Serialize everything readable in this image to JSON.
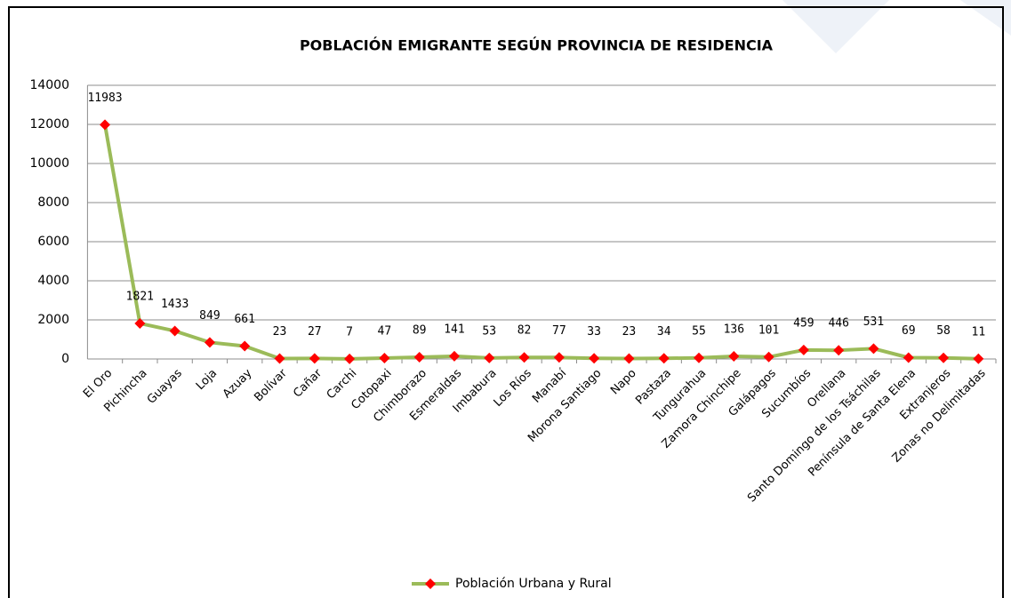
{
  "chart_data": {
    "type": "line",
    "title": "POBLACIÓN EMIGRANTE SEGÚN PROVINCIA DE RESIDENCIA",
    "categories": [
      "El Oro",
      "Pichincha",
      "Guayas",
      "Loja",
      "Azuay",
      "Bolívar",
      "Cañar",
      "Carchi",
      "Cotopaxi",
      "Chimborazo",
      "Esmeraldas",
      "Imbabura",
      "Los Ríos",
      "Manabí",
      "Morona Santiago",
      "Napo",
      "Pastaza",
      "Tungurahua",
      "Zamora Chinchipe",
      "Galápagos",
      "Sucumbíos",
      "Orellana",
      "Santo Domingo de los Tsáchilas",
      "Península de Santa Elena",
      "Extranjeros",
      "Zonas no Delimitadas"
    ],
    "series": [
      {
        "name": "Población Urbana y Rural",
        "color": "#9bbb59",
        "marker_color": "#ff0000",
        "values": [
          11983,
          1821,
          1433,
          849,
          661,
          23,
          27,
          7,
          47,
          89,
          141,
          53,
          82,
          77,
          33,
          23,
          34,
          55,
          136,
          101,
          459,
          446,
          531,
          69,
          58,
          11
        ]
      }
    ],
    "ylim": [
      0,
      14000
    ],
    "yticks": [
      0,
      2000,
      4000,
      6000,
      8000,
      10000,
      12000,
      14000
    ],
    "grid": true,
    "legend": "bottom"
  }
}
